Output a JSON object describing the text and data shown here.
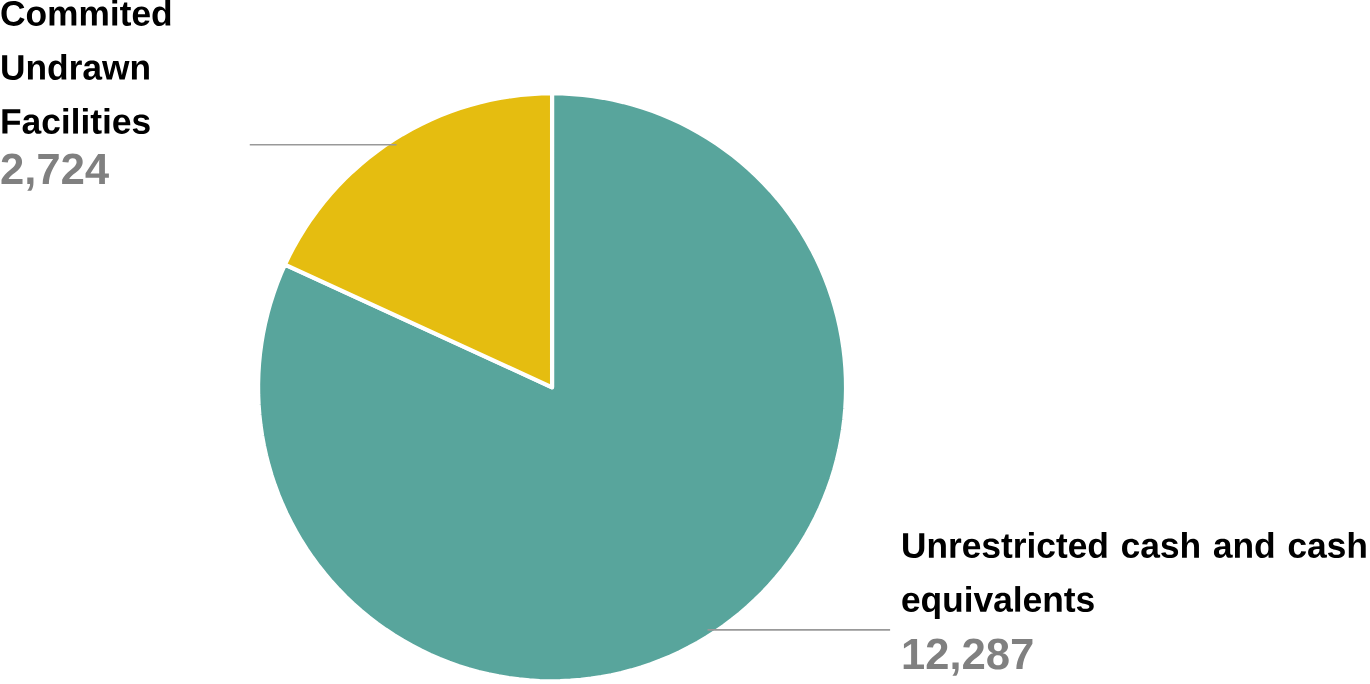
{
  "chart_data": {
    "type": "pie",
    "categories": [
      "Unrestricted cash and cash equivalents",
      "Commited Undrawn Facilities"
    ],
    "values": [
      12287,
      2724
    ],
    "colors": [
      "#58a59c",
      "#e5bd10"
    ],
    "value_labels": [
      "12,287",
      "2,724"
    ]
  }
}
